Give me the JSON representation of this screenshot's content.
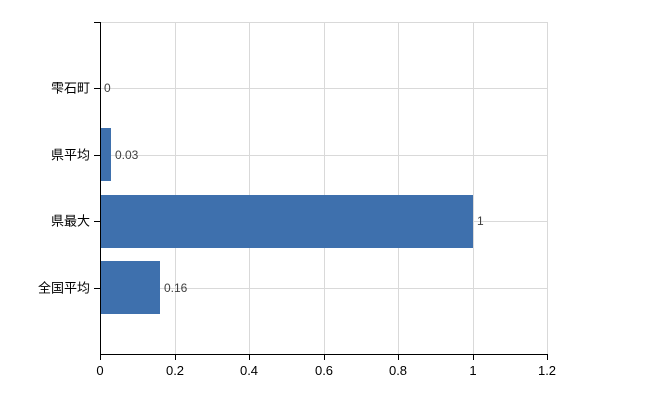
{
  "chart_data": {
    "type": "bar",
    "orientation": "horizontal",
    "categories": [
      "雫石町",
      "県平均",
      "県最大",
      "全国平均"
    ],
    "values": [
      0,
      0.03,
      1,
      0.16
    ],
    "value_labels": [
      "0",
      "0.03",
      "1",
      "0.16"
    ],
    "x_ticks": [
      0,
      0.2,
      0.4,
      0.6,
      0.8,
      1,
      1.2
    ],
    "x_tick_labels": [
      "0",
      "0.2",
      "0.4",
      "0.6",
      "0.8",
      "1",
      "1.2"
    ],
    "xlim": [
      0,
      1.2
    ],
    "grid": true,
    "legend": false,
    "colors": {
      "bar": "#3e70ad",
      "grid": "#d9d9d9",
      "axis": "#000000",
      "value_label": "#404040",
      "tick_label": "#000000",
      "background": "#ffffff"
    }
  }
}
